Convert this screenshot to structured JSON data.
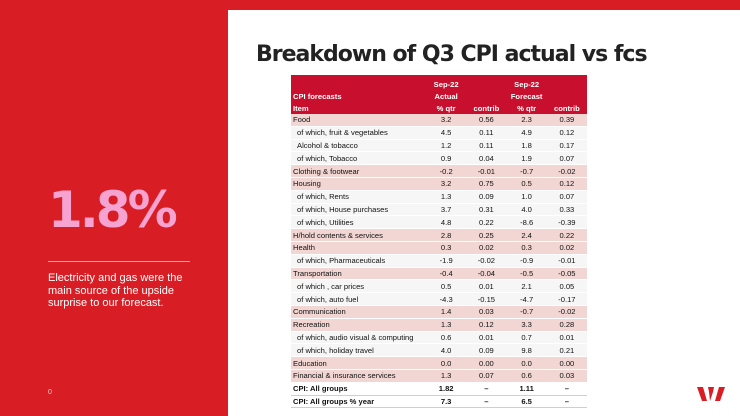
{
  "title": "Breakdown of Q3 CPI actual vs fcs",
  "sidebar": {
    "stat": "1.8%",
    "description": "Electricity and gas were the main source of the upside surprise to our forecast.",
    "page_number": "0"
  },
  "table": {
    "header_row1": [
      "",
      "Sep-22",
      "",
      "Sep-22",
      ""
    ],
    "header_row2": [
      "CPI forecasts",
      "Actual",
      "",
      "Forecast",
      ""
    ],
    "header_row3": [
      "Item",
      "% qtr",
      "contrib",
      "% qtr",
      "contrib"
    ],
    "rows": [
      {
        "item": "Food",
        "actual_qtr": "3.2",
        "actual_contrib": "0.56",
        "forecast_qtr": "2.3",
        "forecast_contrib": "0.39",
        "kind": "cat"
      },
      {
        "item": "of which, fruit & vegetables",
        "actual_qtr": "4.5",
        "actual_contrib": "0.11",
        "forecast_qtr": "4.9",
        "forecast_contrib": "0.12",
        "kind": "sub"
      },
      {
        "item": "Alcohol & tobacco",
        "actual_qtr": "1.2",
        "actual_contrib": "0.11",
        "forecast_qtr": "1.8",
        "forecast_contrib": "0.17",
        "kind": "sub"
      },
      {
        "item": "of which, Tobacco",
        "actual_qtr": "0.9",
        "actual_contrib": "0.04",
        "forecast_qtr": "1.9",
        "forecast_contrib": "0.07",
        "kind": "sub"
      },
      {
        "item": "Clothing & footwear",
        "actual_qtr": "-0.2",
        "actual_contrib": "-0.01",
        "forecast_qtr": "-0.7",
        "forecast_contrib": "-0.02",
        "kind": "cat"
      },
      {
        "item": "Housing",
        "actual_qtr": "3.2",
        "actual_contrib": "0.75",
        "forecast_qtr": "0.5",
        "forecast_contrib": "0.12",
        "kind": "cat"
      },
      {
        "item": "of which, Rents",
        "actual_qtr": "1.3",
        "actual_contrib": "0.09",
        "forecast_qtr": "1.0",
        "forecast_contrib": "0.07",
        "kind": "sub"
      },
      {
        "item": "of which, House purchases",
        "actual_qtr": "3.7",
        "actual_contrib": "0.31",
        "forecast_qtr": "4.0",
        "forecast_contrib": "0.33",
        "kind": "sub"
      },
      {
        "item": "of which, Utilities",
        "actual_qtr": "4.8",
        "actual_contrib": "0.22",
        "forecast_qtr": "-8.6",
        "forecast_contrib": "-0.39",
        "kind": "sub"
      },
      {
        "item": "H/hold contents & services",
        "actual_qtr": "2.8",
        "actual_contrib": "0.25",
        "forecast_qtr": "2.4",
        "forecast_contrib": "0.22",
        "kind": "cat"
      },
      {
        "item": "Health",
        "actual_qtr": "0.3",
        "actual_contrib": "0.02",
        "forecast_qtr": "0.3",
        "forecast_contrib": "0.02",
        "kind": "cat"
      },
      {
        "item": "of which, Pharmaceuticals",
        "actual_qtr": "-1.9",
        "actual_contrib": "-0.02",
        "forecast_qtr": "-0.9",
        "forecast_contrib": "-0.01",
        "kind": "sub"
      },
      {
        "item": "Transportation",
        "actual_qtr": "-0.4",
        "actual_contrib": "-0.04",
        "forecast_qtr": "-0.5",
        "forecast_contrib": "-0.05",
        "kind": "cat"
      },
      {
        "item": "of which , car prices",
        "actual_qtr": "0.5",
        "actual_contrib": "0.01",
        "forecast_qtr": "2.1",
        "forecast_contrib": "0.05",
        "kind": "sub"
      },
      {
        "item": "of which, auto fuel",
        "actual_qtr": "-4.3",
        "actual_contrib": "-0.15",
        "forecast_qtr": "-4.7",
        "forecast_contrib": "-0.17",
        "kind": "sub"
      },
      {
        "item": "Communication",
        "actual_qtr": "1.4",
        "actual_contrib": "0.03",
        "forecast_qtr": "-0.7",
        "forecast_contrib": "-0.02",
        "kind": "cat"
      },
      {
        "item": "Recreation",
        "actual_qtr": "1.3",
        "actual_contrib": "0.12",
        "forecast_qtr": "3.3",
        "forecast_contrib": "0.28",
        "kind": "cat"
      },
      {
        "item": "of which, audio visual & computing",
        "actual_qtr": "0.6",
        "actual_contrib": "0.01",
        "forecast_qtr": "0.7",
        "forecast_contrib": "0.01",
        "kind": "sub"
      },
      {
        "item": "of which, holiday travel",
        "actual_qtr": "4.0",
        "actual_contrib": "0.09",
        "forecast_qtr": "9.8",
        "forecast_contrib": "0.21",
        "kind": "sub"
      },
      {
        "item": "Education",
        "actual_qtr": "0.0",
        "actual_contrib": "0.00",
        "forecast_qtr": "0.0",
        "forecast_contrib": "0.00",
        "kind": "cat"
      },
      {
        "item": "Financial & insurance services",
        "actual_qtr": "1.3",
        "actual_contrib": "0.07",
        "forecast_qtr": "0.6",
        "forecast_contrib": "0.03",
        "kind": "cat"
      },
      {
        "item": "CPI: All groups",
        "actual_qtr": "1.82",
        "actual_contrib": "–",
        "forecast_qtr": "1.11",
        "forecast_contrib": "–",
        "kind": "total"
      },
      {
        "item": "CPI: All groups % year",
        "actual_qtr": "7.3",
        "actual_contrib": "–",
        "forecast_qtr": "6.5",
        "forecast_contrib": "–",
        "kind": "total"
      }
    ]
  },
  "colors": {
    "brand_red": "#d91d24",
    "header_red": "#c8102e",
    "stat_pink": "#f6a3d1",
    "category_row": "#f1d6d3",
    "sub_row": "#f6f6f6"
  },
  "icons": {
    "logo": "westpac-w-logo"
  }
}
